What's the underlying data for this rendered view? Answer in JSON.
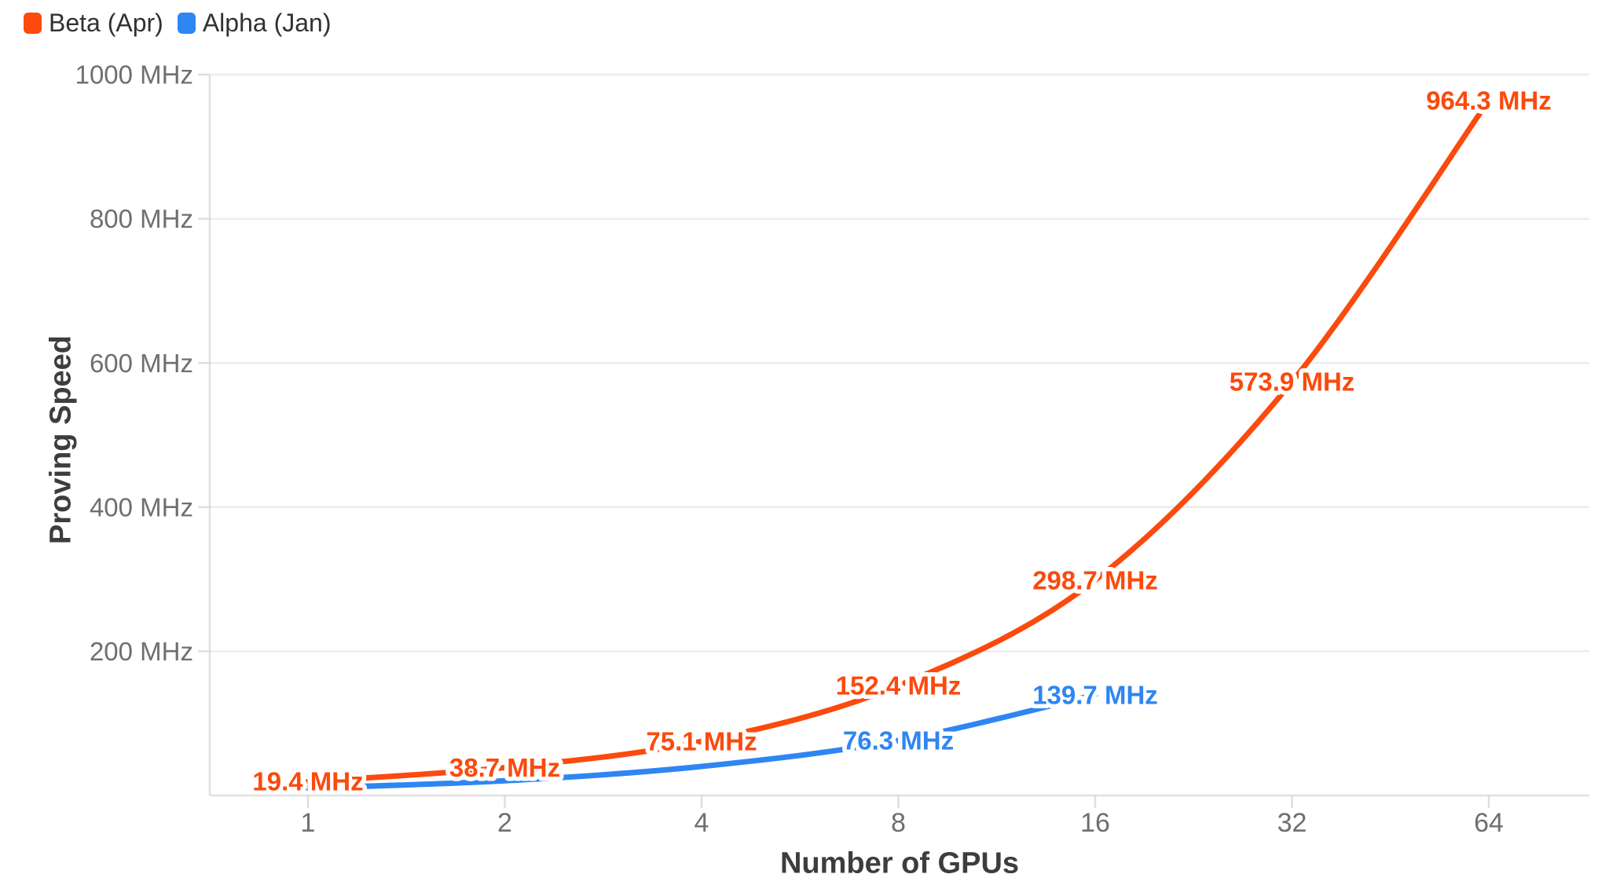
{
  "chart_data": {
    "type": "line",
    "title": "",
    "xlabel": "Number of GPUs",
    "ylabel": "Proving Speed",
    "x_scale": "log2",
    "y_scale": "linear",
    "ylim": [
      0,
      1000
    ],
    "y_unit": "MHz",
    "x_ticks": [
      1,
      2,
      4,
      8,
      16,
      32,
      64
    ],
    "x_tick_labels": [
      "1",
      "2",
      "4",
      "8",
      "16",
      "32",
      "64"
    ],
    "y_ticks": [
      200,
      400,
      600,
      800,
      1000
    ],
    "y_tick_labels": [
      "200 MHz",
      "400 MHz",
      "600 MHz",
      "800 MHz",
      "1000 MHz"
    ],
    "grid": "horizontal",
    "legend_position": "top-left",
    "series": [
      {
        "name": "Beta (Apr)",
        "color": "#FB4A0D",
        "x": [
          1,
          2,
          4,
          8,
          16,
          32,
          64
        ],
        "values": [
          19.4,
          38.7,
          75.1,
          152.4,
          298.7,
          573.9,
          964.3
        ],
        "values_estimated": [
          false,
          false,
          false,
          false,
          false,
          false,
          false
        ],
        "point_labels": [
          "19.4 MHz",
          "38.7 MHz",
          "75.1 MHz",
          "152.4 MHz",
          "298.7 MHz",
          "573.9 MHz",
          "964.3 MHz"
        ]
      },
      {
        "name": "Alpha (Jan)",
        "color": "#2E86F2",
        "x": [
          1,
          2,
          4,
          8,
          16
        ],
        "values": [
          10.2,
          20.4,
          40.3,
          76.3,
          139.7
        ],
        "values_estimated": [
          true,
          true,
          true,
          false,
          false
        ],
        "point_labels": [
          null,
          null,
          null,
          "76.3 MHz",
          "139.7 MHz"
        ]
      }
    ]
  },
  "colors": {
    "background": "#ffffff",
    "gridline": "#ededed",
    "axis_line": "#e0e0e0",
    "tick_mark": "#dedede",
    "tick_text": "#6f6f6f",
    "axis_title_text": "#3d3d3d",
    "legend_text": "#313131"
  }
}
